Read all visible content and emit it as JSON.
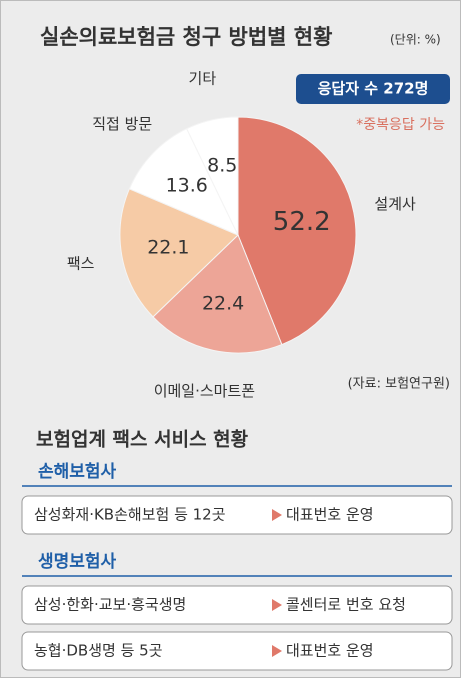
{
  "chart_data": {
    "type": "pie",
    "title": "실손의료보험금 청구 방법별 현황",
    "unit": "(단위: %)",
    "respondents": "응답자 수 272명",
    "note": "*중복응답 가능",
    "source": "(자료: 보험연구원)",
    "categories": [
      "설계사",
      "이메일·스마트폰",
      "팩스",
      "직접 방문",
      "기타"
    ],
    "values": [
      52.2,
      22.4,
      22.1,
      13.6,
      8.5
    ],
    "colors": [
      "#e0796a",
      "#eda597",
      "#f6cba6",
      "#ffffff",
      "#ffffff"
    ]
  },
  "fax": {
    "title": "보험업계 팩스 서비스 현황",
    "groups": [
      {
        "name": "손해보험사",
        "rows": [
          {
            "company": "삼성화재·KB손해보험 등 12곳",
            "service": "대표번호 운영"
          }
        ]
      },
      {
        "name": "생명보험사",
        "rows": [
          {
            "company": "삼성·한화·교보·흥국생명",
            "service": "콜센터로 번호 요청"
          },
          {
            "company": "농협·DB생명 등 5곳",
            "service": "대표번호 운영"
          }
        ]
      }
    ]
  }
}
